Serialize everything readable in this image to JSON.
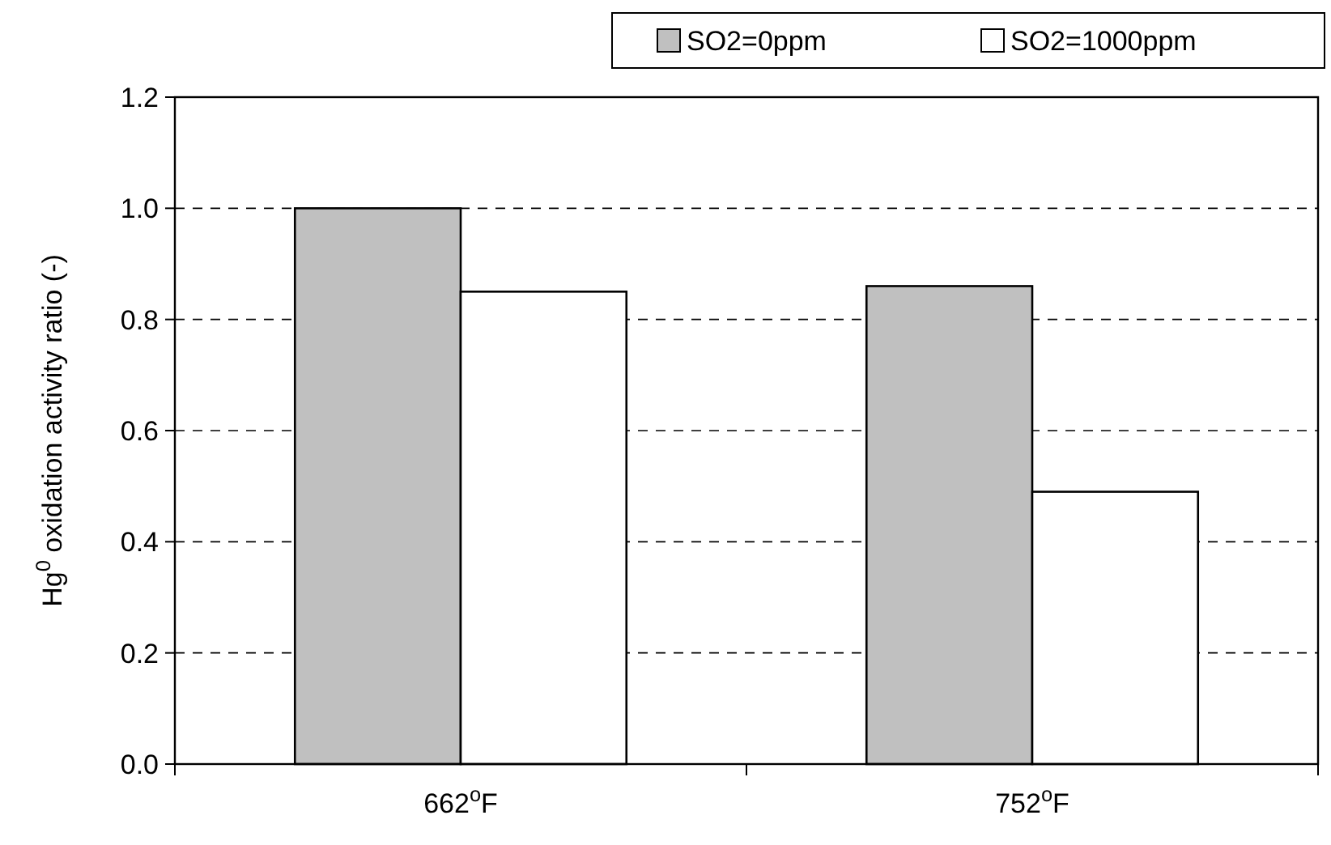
{
  "chart_data": {
    "type": "bar",
    "categories": [
      "662$^{o}$F",
      "752$^{o}$F"
    ],
    "series": [
      {
        "name": "SO2=0ppm",
        "color": "#c0c0c0",
        "values": [
          1.0,
          0.86
        ]
      },
      {
        "name": "SO2=1000ppm",
        "color": "#ffffff",
        "values": [
          0.85,
          0.49
        ]
      }
    ],
    "ylabel": "Hg$^{0}$ oxidation activity ratio (-)",
    "ylim": [
      0,
      1.2
    ],
    "yticks": [
      {
        "value": 0,
        "label": "0.0"
      },
      {
        "value": 0.2,
        "label": "0.2"
      },
      {
        "value": 0.4,
        "label": "0.4"
      },
      {
        "value": 0.6,
        "label": "0.6"
      },
      {
        "value": 0.8,
        "label": "0.8"
      },
      {
        "value": 1.0,
        "label": "1.0"
      },
      {
        "value": 1.2,
        "label": "1.2"
      }
    ],
    "grid": "y",
    "legend": "top right"
  }
}
